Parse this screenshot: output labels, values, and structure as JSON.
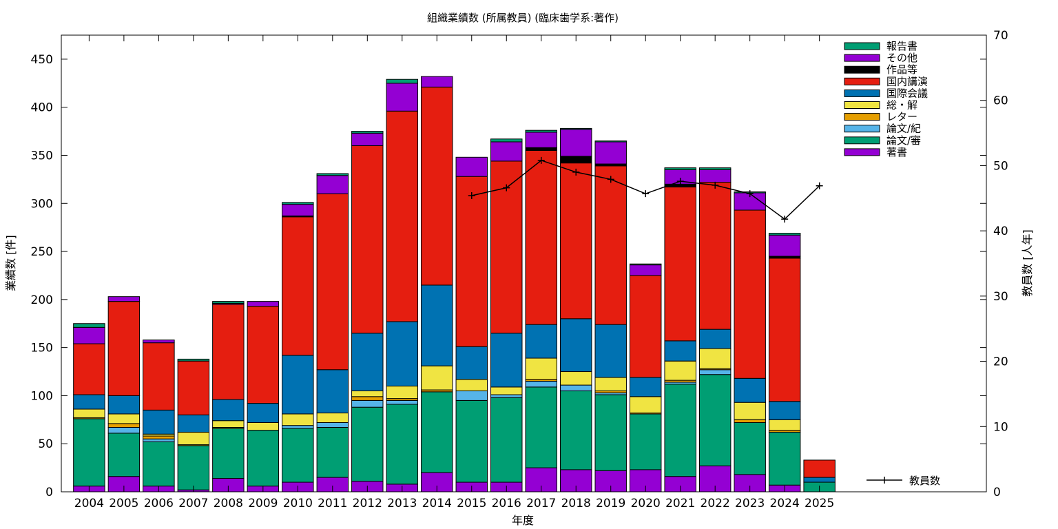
{
  "chart_data": {
    "type": "bar",
    "title": "組織業績数 (所属教員) (臨床歯学系:著作)",
    "xlabel": "年度",
    "ylabel": "業績数 [件]",
    "y2label": "教員数 [人年]",
    "ylim": [
      0,
      475
    ],
    "y2lim": [
      0,
      70
    ],
    "yticks": [
      "0",
      "50",
      "100",
      "150",
      "200",
      "250",
      "300",
      "350",
      "400",
      "450"
    ],
    "y2ticks": [
      "0",
      "10",
      "20",
      "30",
      "40",
      "50",
      "60",
      "70"
    ],
    "legend_position": "top-right",
    "grid": false,
    "stacked": true,
    "categories": [
      "2004",
      "2005",
      "2006",
      "2007",
      "2008",
      "2009",
      "2010",
      "2011",
      "2012",
      "2013",
      "2014",
      "2015",
      "2016",
      "2017",
      "2018",
      "2019",
      "2020",
      "2021",
      "2022",
      "2023",
      "2024",
      "2025"
    ],
    "series": [
      {
        "name": "著書",
        "color": "#9400d3",
        "values": [
          6,
          16,
          6,
          2,
          14,
          6,
          10,
          15,
          11,
          8,
          20,
          10,
          10,
          25,
          23,
          22,
          23,
          16,
          27,
          18,
          7,
          0
        ]
      },
      {
        "name": "論文/審",
        "color": "#009e73",
        "values": [
          70,
          45,
          46,
          46,
          52,
          58,
          56,
          52,
          77,
          83,
          84,
          85,
          88,
          84,
          82,
          79,
          58,
          96,
          95,
          54,
          55,
          10
        ]
      },
      {
        "name": "論文/紀",
        "color": "#56b4e9",
        "values": [
          0,
          6,
          3,
          0,
          0,
          0,
          3,
          5,
          7,
          4,
          0,
          10,
          3,
          6,
          6,
          2,
          0,
          2,
          5,
          0,
          0,
          0
        ]
      },
      {
        "name": "レター",
        "color": "#e69f00",
        "values": [
          1,
          4,
          3,
          1,
          1,
          0,
          0,
          0,
          4,
          2,
          2,
          0,
          0,
          2,
          0,
          2,
          1,
          2,
          1,
          3,
          2,
          0
        ]
      },
      {
        "name": "総・解",
        "color": "#f0e442",
        "values": [
          9,
          10,
          2,
          13,
          7,
          8,
          12,
          10,
          6,
          13,
          25,
          12,
          8,
          22,
          14,
          14,
          17,
          20,
          21,
          18,
          11,
          0
        ]
      },
      {
        "name": "国際会議",
        "color": "#0072b2",
        "values": [
          15,
          19,
          25,
          18,
          22,
          20,
          61,
          45,
          60,
          67,
          84,
          34,
          56,
          35,
          55,
          55,
          20,
          21,
          20,
          25,
          19,
          5
        ]
      },
      {
        "name": "国内講演",
        "color": "#e51e10",
        "values": [
          53,
          98,
          70,
          56,
          99,
          101,
          144,
          183,
          195,
          219,
          206,
          177,
          179,
          181,
          162,
          165,
          106,
          160,
          153,
          175,
          149,
          18
        ]
      },
      {
        "name": "作品等",
        "color": "#000000",
        "values": [
          0,
          0,
          0,
          0,
          0,
          0,
          1,
          0,
          0,
          0,
          0,
          0,
          0,
          3,
          7,
          2,
          0,
          3,
          0,
          0,
          2,
          0
        ]
      },
      {
        "name": "その他",
        "color": "#9400d3",
        "values": [
          17,
          5,
          3,
          0,
          1,
          5,
          12,
          19,
          13,
          29,
          11,
          20,
          20,
          16,
          28,
          23,
          11,
          15,
          13,
          18,
          22,
          0
        ]
      },
      {
        "name": "報告書",
        "color": "#009e73",
        "values": [
          4,
          0,
          0,
          2,
          2,
          0,
          2,
          2,
          2,
          4,
          0,
          0,
          3,
          2,
          1,
          1,
          1,
          2,
          2,
          1,
          2,
          0
        ]
      }
    ],
    "line_series": {
      "name": "教員数",
      "axis": "y2",
      "color": "#000000",
      "x": [
        "2015",
        "2016",
        "2017",
        "2018",
        "2019",
        "2020",
        "2021",
        "2022",
        "2023",
        "2024",
        "2025"
      ],
      "values": [
        45.4,
        46.6,
        50.8,
        49.0,
        47.9,
        45.7,
        47.6,
        47.0,
        45.7,
        41.8,
        46.9
      ]
    }
  }
}
